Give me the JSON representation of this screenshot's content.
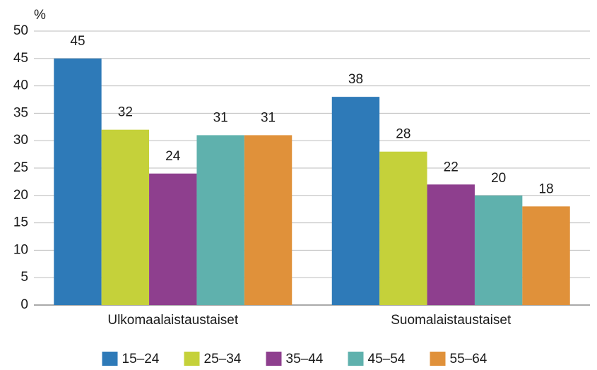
{
  "chart_data": {
    "type": "bar",
    "ylabel": "%",
    "categories": [
      "Ulkomaalaistaustaiset",
      "Suomalaistaustaiset"
    ],
    "series": [
      {
        "name": "15–24",
        "color": "#2e7ab8",
        "values": [
          45,
          38
        ]
      },
      {
        "name": "25–34",
        "color": "#c5d13a",
        "values": [
          32,
          28
        ]
      },
      {
        "name": "35–44",
        "color": "#8e3f8e",
        "values": [
          24,
          22
        ]
      },
      {
        "name": "45–54",
        "color": "#5fb1ad",
        "values": [
          31,
          20
        ]
      },
      {
        "name": "55–64",
        "color": "#e0913a",
        "values": [
          31,
          18
        ]
      }
    ],
    "ylim": [
      0,
      50
    ],
    "yticks": [
      0,
      5,
      10,
      15,
      20,
      25,
      30,
      35,
      40,
      45,
      50
    ],
    "grid": true,
    "legend": "bottom",
    "data_labels": true
  }
}
